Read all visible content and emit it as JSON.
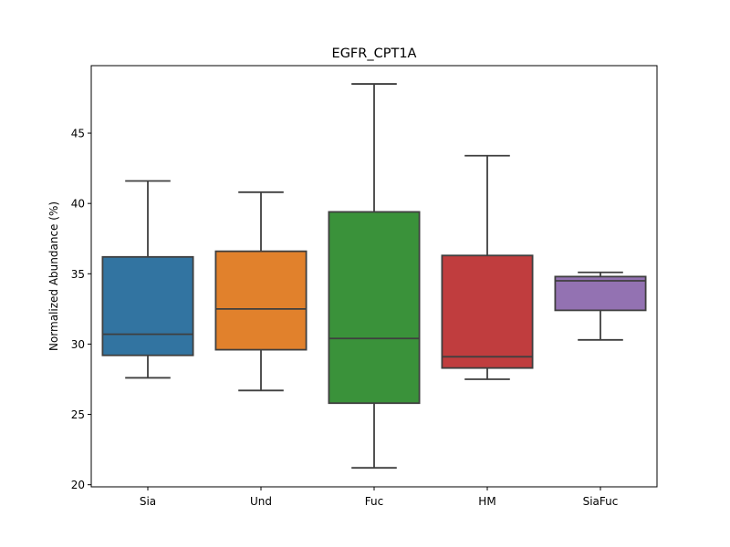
{
  "chart_data": {
    "type": "box",
    "title": "EGFR_CPT1A",
    "xlabel": "",
    "ylabel": "Normalized Abundance (%)",
    "ylim": [
      19.85,
      49.8
    ],
    "yticks": [
      20,
      25,
      30,
      35,
      40,
      45
    ],
    "categories": [
      "Sia",
      "Und",
      "Fuc",
      "HM",
      "SiaFuc"
    ],
    "boxes": [
      {
        "category": "Sia",
        "whisker_low": 27.6,
        "q1": 29.2,
        "median": 30.7,
        "q3": 36.2,
        "whisker_high": 41.6,
        "color": "#3274a1"
      },
      {
        "category": "Und",
        "whisker_low": 26.7,
        "q1": 29.6,
        "median": 32.5,
        "q3": 36.6,
        "whisker_high": 40.8,
        "color": "#e1812c"
      },
      {
        "category": "Fuc",
        "whisker_low": 21.2,
        "q1": 25.8,
        "median": 30.4,
        "q3": 39.4,
        "whisker_high": 48.5,
        "color": "#3a923a"
      },
      {
        "category": "HM",
        "whisker_low": 27.5,
        "q1": 28.3,
        "median": 29.1,
        "q3": 36.3,
        "whisker_high": 43.4,
        "color": "#c03d3e"
      },
      {
        "category": "SiaFuc",
        "whisker_low": 30.3,
        "q1": 32.4,
        "median": 34.5,
        "q3": 34.8,
        "whisker_high": 35.1,
        "color": "#9372b2"
      }
    ],
    "grid": false,
    "legend": "none"
  }
}
